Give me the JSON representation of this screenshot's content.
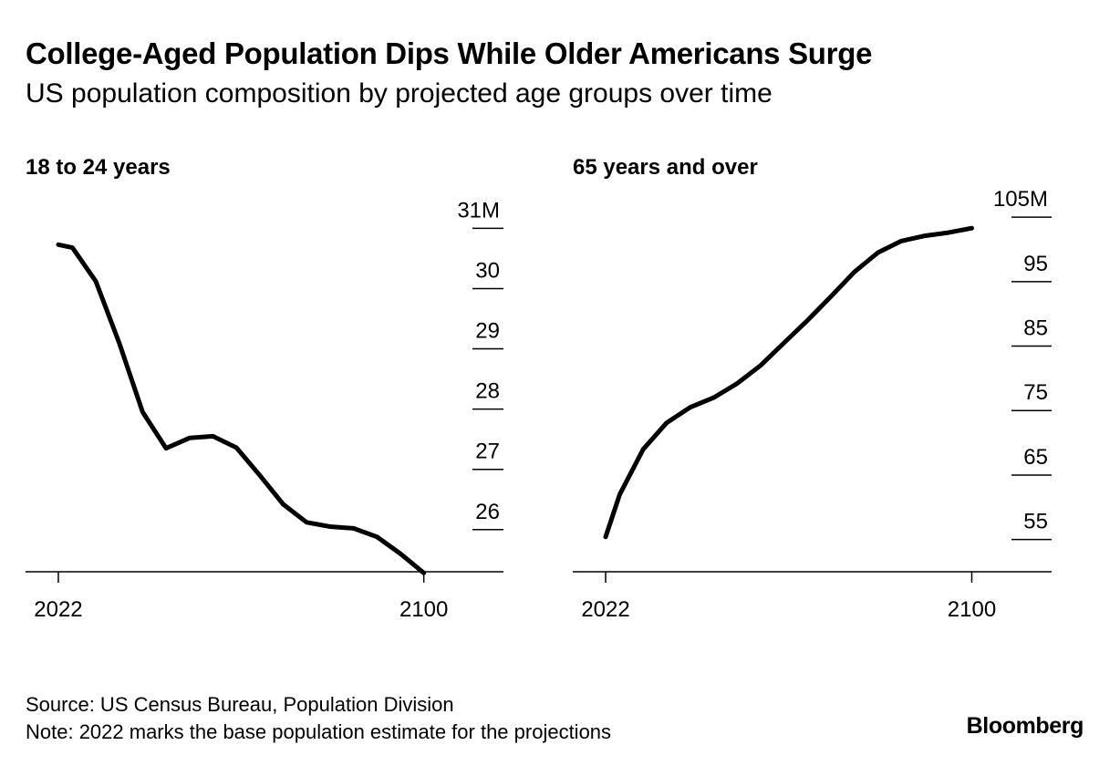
{
  "title": "College-Aged Population Dips While Older Americans Surge",
  "subtitle": "US population composition by projected age groups over time",
  "footer": {
    "source": "Source: US Census Bureau, Population Division",
    "note": "Note: 2022 marks the base population estimate for the projections",
    "brand": "Bloomberg"
  },
  "colors": {
    "line": "#000000",
    "axis": "#000000",
    "text": "#000000"
  },
  "chart_data": [
    {
      "type": "line",
      "title": "18 to 24 years",
      "x_ticks": [
        2022,
        2100
      ],
      "y_ticks": [
        {
          "value": 31,
          "label": "31M"
        },
        {
          "value": 30,
          "label": "30"
        },
        {
          "value": 29,
          "label": "29"
        },
        {
          "value": 28,
          "label": "28"
        },
        {
          "value": 27,
          "label": "27"
        },
        {
          "value": 26,
          "label": "26"
        }
      ],
      "ylim": [
        25.3,
        31.4
      ],
      "xlim": [
        2015,
        2117
      ],
      "grid": false,
      "series": [
        {
          "x": [
            2022,
            2025,
            2030,
            2035,
            2040,
            2045,
            2050,
            2055,
            2060,
            2065,
            2070,
            2075,
            2080,
            2085,
            2090,
            2095,
            2100
          ],
          "values": [
            30.73,
            30.68,
            30.12,
            29.1,
            27.95,
            27.35,
            27.52,
            27.55,
            27.36,
            26.9,
            26.42,
            26.12,
            26.05,
            26.02,
            25.88,
            25.6,
            25.28
          ]
        }
      ]
    },
    {
      "type": "line",
      "title": "65 years and over",
      "x_ticks": [
        2022,
        2100
      ],
      "y_ticks": [
        {
          "value": 105,
          "label": "105M"
        },
        {
          "value": 95,
          "label": "95"
        },
        {
          "value": 85,
          "label": "85"
        },
        {
          "value": 75,
          "label": "75"
        },
        {
          "value": 65,
          "label": "65"
        },
        {
          "value": 55,
          "label": "55"
        }
      ],
      "ylim": [
        50,
        107
      ],
      "xlim": [
        2015,
        2117
      ],
      "grid": false,
      "series": [
        {
          "x": [
            2022,
            2025,
            2030,
            2035,
            2040,
            2045,
            2050,
            2055,
            2060,
            2065,
            2070,
            2075,
            2080,
            2085,
            2090,
            2095,
            2100
          ],
          "values": [
            55.4,
            62.0,
            69.0,
            73.1,
            75.5,
            77.0,
            79.2,
            82.0,
            85.5,
            89.0,
            92.7,
            96.5,
            99.5,
            101.3,
            102.1,
            102.6,
            103.3
          ]
        }
      ]
    }
  ]
}
